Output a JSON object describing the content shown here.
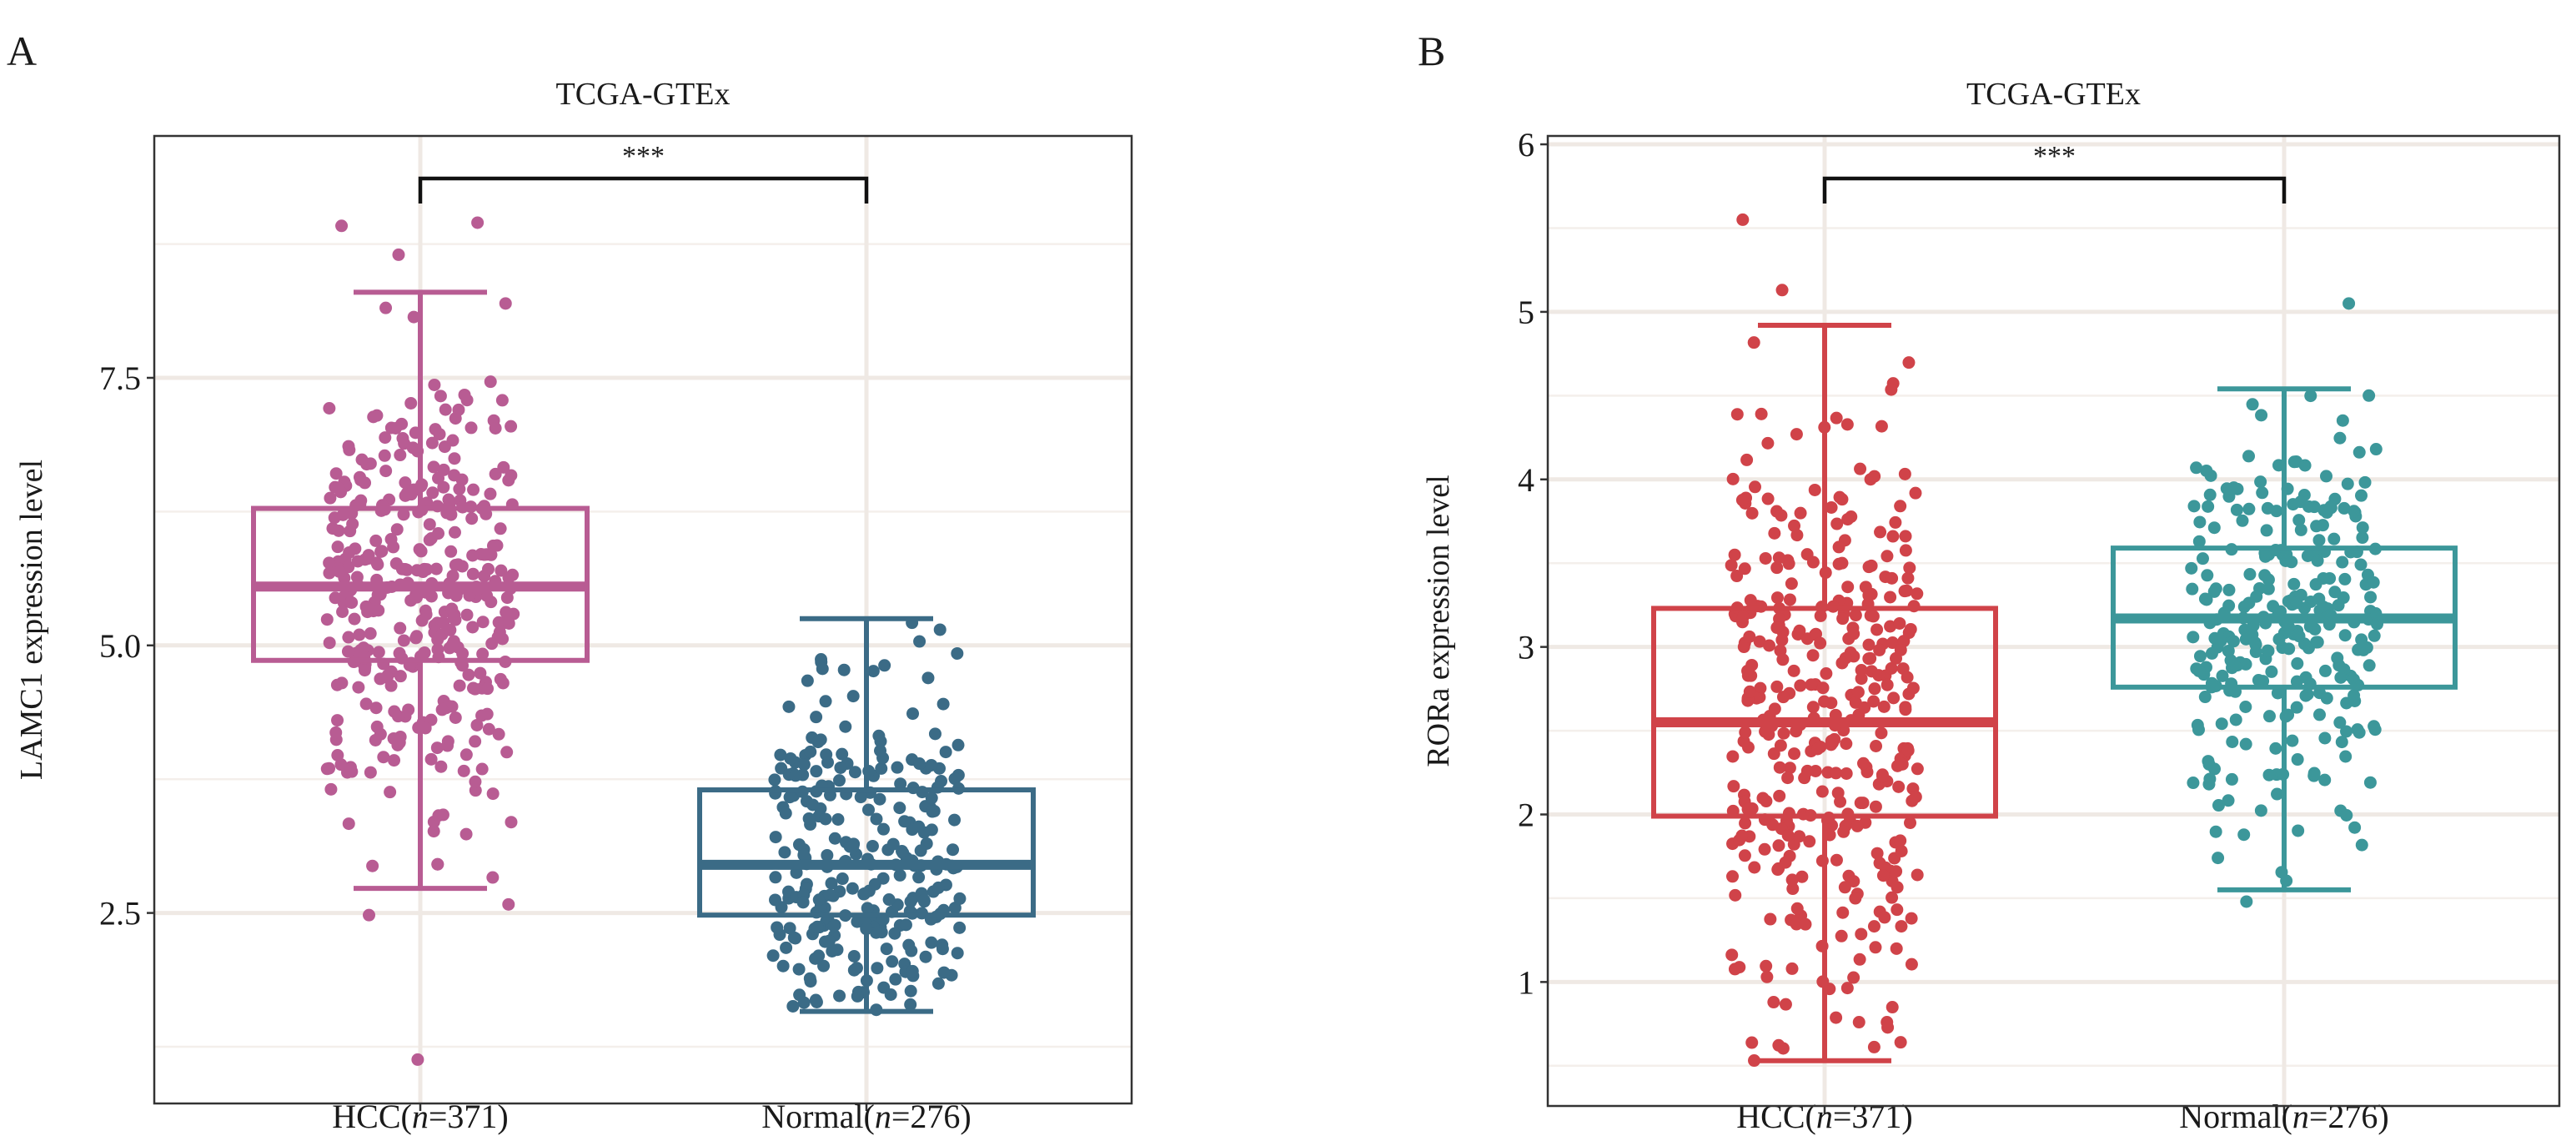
{
  "chart_data": [
    {
      "type": "box",
      "panel_label": "A",
      "title": "TCGA-GTEx",
      "xlabel": "",
      "ylabel": "LAMC1 expression level",
      "ylim": [
        0.72,
        9.76
      ],
      "yticks": [
        2.5,
        5.0,
        7.5
      ],
      "ytick_labels": [
        "2.5",
        "5.0",
        "7.5"
      ],
      "grid": true,
      "significance": "***",
      "categories": [
        {
          "label_prefix": "HCC(",
          "n_symbol": "n",
          "label_suffix": "=371)",
          "n": 371,
          "color": "#b85c93",
          "whisker_low": 2.73,
          "q1": 4.86,
          "median": 5.55,
          "q3": 6.28,
          "whisker_high": 8.3,
          "outliers": [
            8.95,
            8.92,
            8.65,
            2.58,
            2.48,
            1.13
          ]
        },
        {
          "label_prefix": "Normal(",
          "n_symbol": "n",
          "label_suffix": "=276)",
          "n": 276,
          "color": "#3b6b86",
          "whisker_low": 1.58,
          "q1": 2.48,
          "median": 2.95,
          "q3": 3.65,
          "whisker_high": 5.25,
          "outliers": []
        }
      ]
    },
    {
      "type": "box",
      "panel_label": "B",
      "title": "TCGA-GTEx",
      "xlabel": "",
      "ylabel": "RORa expression level",
      "ylim": [
        0.26,
        6.05
      ],
      "yticks": [
        1,
        2,
        3,
        4,
        5,
        6
      ],
      "ytick_labels": [
        "1",
        "2",
        "3",
        "4",
        "5",
        "6"
      ],
      "grid": true,
      "significance": "***",
      "categories": [
        {
          "label_prefix": "HCC(",
          "n_symbol": "n",
          "label_suffix": "=371)",
          "n": 371,
          "color": "#d04349",
          "whisker_low": 0.53,
          "q1": 1.99,
          "median": 2.55,
          "q3": 3.23,
          "whisker_high": 4.92,
          "outliers": [
            5.55,
            5.13
          ]
        },
        {
          "label_prefix": "Normal(",
          "n_symbol": "n",
          "label_suffix": "=276)",
          "n": 276,
          "color": "#3c979a",
          "whisker_low": 1.55,
          "q1": 2.76,
          "median": 3.17,
          "q3": 3.59,
          "whisker_high": 4.54,
          "outliers": [
            5.05,
            1.48
          ]
        }
      ]
    }
  ]
}
